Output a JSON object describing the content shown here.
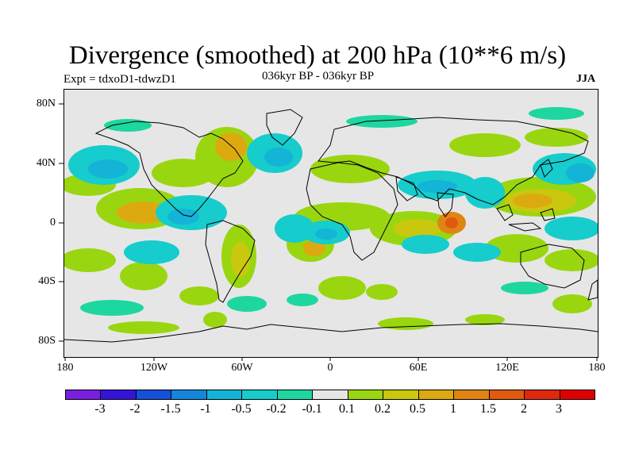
{
  "title": "Divergence (smoothed) at 200 hPa (10**6 m/s)",
  "experiment": "Expt = tdxoD1-tdwzD1",
  "period": "036kyr BP - 036kyr BP",
  "season": "JJA",
  "lat_labels": [
    "80N",
    "40N",
    "0",
    "40S",
    "80S"
  ],
  "lon_labels": [
    "180",
    "120W",
    "60W",
    "0",
    "60E",
    "120E",
    "180"
  ],
  "colorbar": {
    "labels": [
      "-3",
      "-2",
      "-1.5",
      "-1",
      "-0.5",
      "-0.2",
      "-0.1",
      "0.1",
      "0.2",
      "0.5",
      "1",
      "1.5",
      "2",
      "3"
    ],
    "colors": [
      "#7a1fe0",
      "#3514d9",
      "#1450d9",
      "#1487dd",
      "#13b4d6",
      "#16cccc",
      "#1ed6a0",
      "#e6e6e6",
      "#9ad60f",
      "#c9c80f",
      "#dcaa10",
      "#e08414",
      "#e05a10",
      "#e0280f",
      "#e00000"
    ]
  },
  "colors": {
    "neutral": "#e6e6e6",
    "pos_weak": "#9ad60f",
    "pos_mid": "#c9c80f",
    "pos_str": "#dcaa10",
    "pos_xstr": "#e08414",
    "pos_max": "#e05a10",
    "neg_weak": "#1ed6a0",
    "neg_mid": "#16cccc",
    "neg_str": "#13b4d6",
    "neg_xstr": "#1487dd"
  }
}
